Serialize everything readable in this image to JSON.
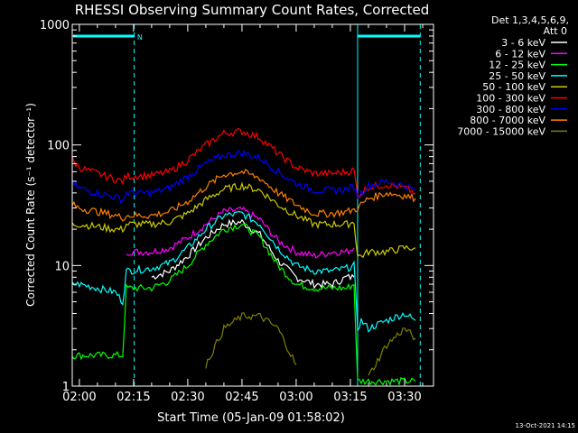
{
  "chart_data": {
    "type": "line",
    "title": "RHESSI Observing Summary Count Rates, Corrected",
    "xlabel": "Start Time (05-Jan-09 01:58:02)",
    "ylabel": "Corrected Count Rate (s⁻¹ detector⁻¹)",
    "yscale": "log",
    "xlim": [
      "01:58:02",
      "03:38:00"
    ],
    "ylim": [
      1,
      1000
    ],
    "x_ticks": [
      "02:00",
      "02:15",
      "02:30",
      "02:45",
      "03:00",
      "03:15",
      "03:30"
    ],
    "y_ticks": [
      "1",
      "10",
      "100",
      "1000"
    ],
    "legend_header": [
      "Det 1,3,4,5,6,9,",
      "Att 0"
    ],
    "legend_position": "right",
    "footer_date": "13-Oct-2021 14:15",
    "annotations": [
      {
        "text": "N",
        "x": "02:16",
        "y": 800,
        "color": "#00ffff"
      }
    ],
    "markers": {
      "color": "#00ffff",
      "vertical_dashed_lines": [
        "02:15:10",
        "03:34:20"
      ],
      "vertical_solid_lines": [
        "03:17:00"
      ],
      "bars_at_y": 800,
      "bars": [
        [
          "01:58:02",
          "02:15:10"
        ],
        [
          "03:17:00",
          "03:34:20"
        ]
      ]
    },
    "time_samples": [
      "01:58",
      "02:00",
      "02:05",
      "02:10",
      "02:12",
      "02:13",
      "02:20",
      "02:25",
      "02:30",
      "02:35",
      "02:40",
      "02:45",
      "02:50",
      "02:55",
      "03:00",
      "03:05",
      "03:10",
      "03:14",
      "03:16",
      "03:17",
      "03:18",
      "03:20",
      "03:25",
      "03:30",
      "03:33",
      "03:34"
    ],
    "series": [
      {
        "name": "3 - 6 keV",
        "color": "#ffffff",
        "values": [
          null,
          null,
          null,
          null,
          null,
          null,
          8,
          9,
          12,
          17,
          22,
          23,
          18,
          11,
          8,
          7,
          7,
          8,
          8,
          null,
          null,
          null,
          null,
          null,
          null,
          null
        ]
      },
      {
        "name": "6 - 12 keV",
        "color": "#ff00ff",
        "values": [
          null,
          null,
          null,
          null,
          null,
          13,
          13,
          14,
          17,
          22,
          28,
          29,
          24,
          16,
          13,
          12,
          13,
          13,
          14,
          null,
          null,
          null,
          null,
          null,
          null,
          null
        ]
      },
      {
        "name": "12 - 25 keV",
        "color": "#00ff00",
        "values": [
          1.8,
          1.8,
          1.8,
          1.8,
          1.8,
          6.5,
          6.5,
          7.5,
          10,
          15,
          20,
          22,
          17,
          10,
          7,
          6.5,
          6.5,
          6.5,
          7,
          1.1,
          1.1,
          1.1,
          1.1,
          1.1,
          1.1,
          null
        ]
      },
      {
        "name": "25 - 50 keV",
        "color": "#00ffff",
        "values": [
          7,
          7,
          6.5,
          6,
          5,
          9,
          9.5,
          10.5,
          14,
          20,
          26,
          27,
          22,
          14,
          10,
          9,
          9,
          9.5,
          10,
          3,
          3.5,
          3,
          3.5,
          4,
          3.5,
          null
        ]
      },
      {
        "name": "50 - 100 keV",
        "color": "#cccc00",
        "values": [
          22,
          22,
          21,
          20,
          20,
          22,
          22,
          23,
          27,
          35,
          43,
          46,
          42,
          32,
          26,
          22,
          22,
          22,
          23,
          12,
          12,
          13,
          13,
          14,
          14,
          null
        ]
      },
      {
        "name": "100 - 300 keV",
        "color": "#ff0000",
        "values": [
          75,
          65,
          58,
          52,
          50,
          55,
          56,
          60,
          75,
          100,
          125,
          130,
          115,
          85,
          65,
          58,
          58,
          60,
          62,
          38,
          40,
          45,
          47,
          44,
          40,
          null
        ]
      },
      {
        "name": "300 - 800 keV",
        "color": "#0000ff",
        "values": [
          48,
          44,
          40,
          37,
          35,
          40,
          40,
          44,
          55,
          70,
          82,
          86,
          78,
          60,
          48,
          42,
          42,
          43,
          45,
          38,
          40,
          46,
          50,
          46,
          42,
          null
        ]
      },
      {
        "name": "800 - 7000 keV",
        "color": "#ff8000",
        "values": [
          32,
          30,
          28,
          26,
          25,
          26,
          26,
          28,
          34,
          45,
          57,
          60,
          53,
          40,
          32,
          27,
          27,
          28,
          29,
          30,
          32,
          36,
          40,
          38,
          36,
          null
        ]
      },
      {
        "name": "7000 - 15000 keV",
        "color": "#808000",
        "values": [
          null,
          null,
          null,
          null,
          null,
          null,
          null,
          null,
          null,
          1.5,
          3,
          3.8,
          3.8,
          3,
          1.5,
          null,
          null,
          null,
          null,
          null,
          null,
          1.2,
          2.2,
          3,
          2.5,
          null
        ]
      }
    ]
  }
}
